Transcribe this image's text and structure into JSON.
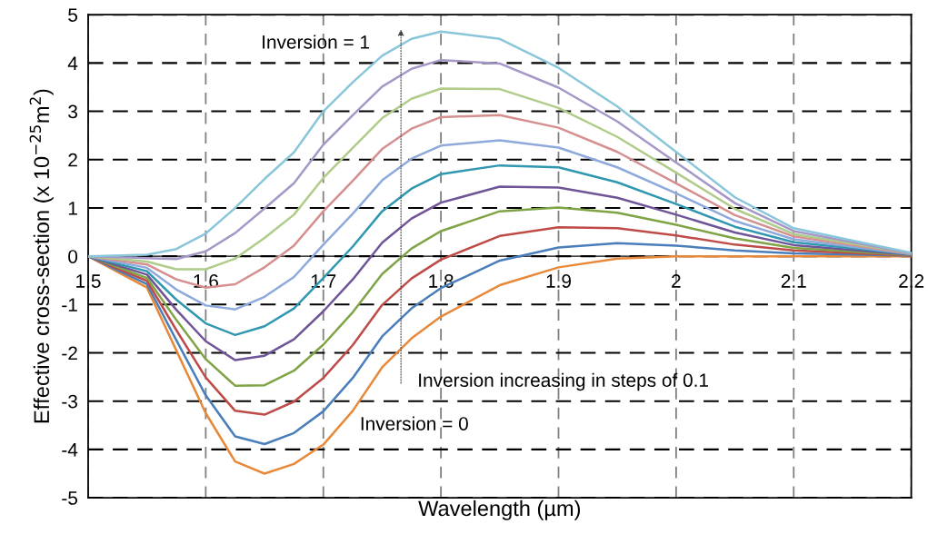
{
  "chart_data": {
    "type": "line",
    "xlabel": "Wavelength (µm)",
    "ylabel": "Effective cross-section (x 10$^{−25}$m$^{2}$)",
    "annotations": [
      "Inversion = 1",
      "Inversion increasing in steps of 0.1",
      "Inversion = 0"
    ],
    "x": [
      1.5,
      1.55,
      1.575,
      1.6,
      1.625,
      1.65,
      1.675,
      1.7,
      1.725,
      1.75,
      1.775,
      1.8,
      1.85,
      1.9,
      1.95,
      2.0,
      2.05,
      2.1,
      2.2
    ],
    "series": [
      {
        "color": "#e8893a",
        "values": [
          0,
          -0.65,
          -1.95,
          -3.25,
          -4.25,
          -4.5,
          -4.3,
          -3.9,
          -3.2,
          -2.3,
          -1.7,
          -1.25,
          -0.6,
          -0.23,
          -0.05,
          0,
          0,
          0,
          0
        ]
      },
      {
        "color": "#4a7ebb",
        "values": [
          0,
          -0.58,
          -1.74,
          -2.88,
          -3.73,
          -3.89,
          -3.66,
          -3.21,
          -2.52,
          -1.66,
          -1.08,
          -0.66,
          -0.09,
          0.18,
          0.27,
          0.22,
          0.12,
          0.06,
          0.01
        ]
      },
      {
        "color": "#be4b48",
        "values": [
          0,
          -0.51,
          -1.53,
          -2.51,
          -3.2,
          -3.28,
          -3.01,
          -2.52,
          -1.84,
          -1.01,
          -0.46,
          -0.07,
          0.42,
          0.6,
          0.58,
          0.43,
          0.24,
          0.12,
          0.01
        ]
      },
      {
        "color": "#7fa345",
        "values": [
          0,
          -0.45,
          -1.32,
          -2.13,
          -2.68,
          -2.67,
          -2.37,
          -1.83,
          -1.16,
          -0.37,
          0.16,
          0.52,
          0.93,
          1.01,
          0.9,
          0.65,
          0.37,
          0.17,
          0.02
        ]
      },
      {
        "color": "#6f5597",
        "values": [
          0,
          -0.38,
          -1.11,
          -1.76,
          -2.15,
          -2.06,
          -1.72,
          -1.14,
          -0.48,
          0.28,
          0.78,
          1.11,
          1.44,
          1.42,
          1.21,
          0.86,
          0.49,
          0.23,
          0.03
        ]
      },
      {
        "color": "#2f97b0",
        "values": [
          0,
          -0.31,
          -0.9,
          -1.39,
          -1.63,
          -1.45,
          -1.08,
          -0.45,
          0.2,
          0.93,
          1.4,
          1.7,
          1.88,
          1.84,
          1.53,
          1.08,
          0.61,
          0.29,
          0.04
        ]
      },
      {
        "color": "#8ea9db",
        "values": [
          0,
          -0.24,
          -0.69,
          -1.02,
          -1.1,
          -0.84,
          -0.43,
          0.24,
          0.88,
          1.57,
          2.02,
          2.29,
          2.4,
          2.25,
          1.84,
          1.3,
          0.73,
          0.35,
          0.04
        ]
      },
      {
        "color": "#d48f8e",
        "values": [
          0,
          -0.17,
          -0.48,
          -0.65,
          -0.58,
          -0.23,
          0.22,
          0.93,
          1.56,
          2.22,
          2.64,
          2.88,
          2.92,
          2.66,
          2.16,
          1.51,
          0.85,
          0.41,
          0.05
        ]
      },
      {
        "color": "#b0cc8a",
        "values": [
          0,
          -0.11,
          -0.27,
          -0.27,
          -0.05,
          0.38,
          0.86,
          1.62,
          2.24,
          2.86,
          3.26,
          3.47,
          3.46,
          3.07,
          2.47,
          1.73,
          0.98,
          0.46,
          0.06
        ]
      },
      {
        "color": "#a597c6",
        "values": [
          0,
          -0.04,
          -0.06,
          0.1,
          0.48,
          0.99,
          1.51,
          2.31,
          2.92,
          3.51,
          3.88,
          4.06,
          3.99,
          3.49,
          2.79,
          1.94,
          1.1,
          0.52,
          0.06
        ]
      },
      {
        "color": "#8ac6da",
        "values": [
          0,
          0.03,
          0.15,
          0.47,
          1.0,
          1.6,
          2.15,
          3.0,
          3.6,
          4.15,
          4.5,
          4.65,
          4.5,
          3.9,
          3.1,
          2.16,
          1.22,
          0.58,
          0.07
        ]
      }
    ],
    "xlim": [
      1.5,
      2.2
    ],
    "xticks": [
      1.5,
      1.6,
      1.7,
      1.8,
      1.9,
      2,
      2.1,
      2.2
    ],
    "ylim": [
      -5,
      5
    ],
    "yticks": [
      -5,
      -4,
      -3,
      -2,
      -1,
      0,
      1,
      2,
      3,
      4,
      5
    ],
    "grid": true,
    "marker": "none",
    "line_style": "solid"
  }
}
